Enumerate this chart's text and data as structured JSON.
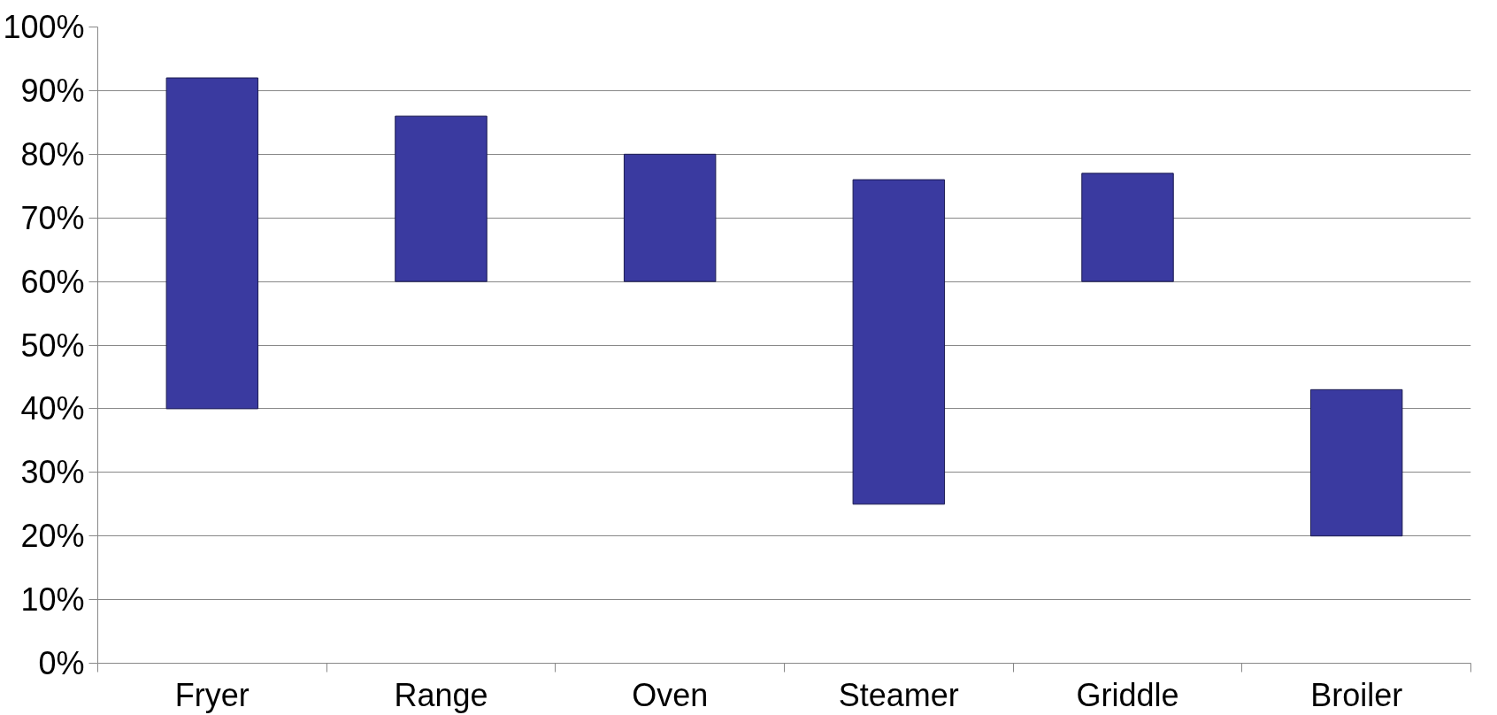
{
  "chart_data": {
    "type": "bar",
    "categories": [
      "Fryer",
      "Range",
      "Oven",
      "Steamer",
      "Griddle",
      "Broiler"
    ],
    "values": [
      52,
      26,
      20,
      51,
      17,
      23
    ],
    "base": [
      40,
      60,
      60,
      25,
      60,
      20
    ],
    "color": "#3a3aa0",
    "ylim": [
      0,
      100
    ],
    "yticks": [
      {
        "value": 0,
        "label": "0%"
      },
      {
        "value": 10,
        "label": "10%"
      },
      {
        "value": 20,
        "label": "20%"
      },
      {
        "value": 30,
        "label": "30%"
      },
      {
        "value": 40,
        "label": "40%"
      },
      {
        "value": 50,
        "label": "50%"
      },
      {
        "value": 60,
        "label": "60%"
      },
      {
        "value": 70,
        "label": "70%"
      },
      {
        "value": 80,
        "label": "80%"
      },
      {
        "value": 90,
        "label": "90%"
      },
      {
        "value": 100,
        "label": "100%"
      }
    ],
    "grid": "y"
  }
}
